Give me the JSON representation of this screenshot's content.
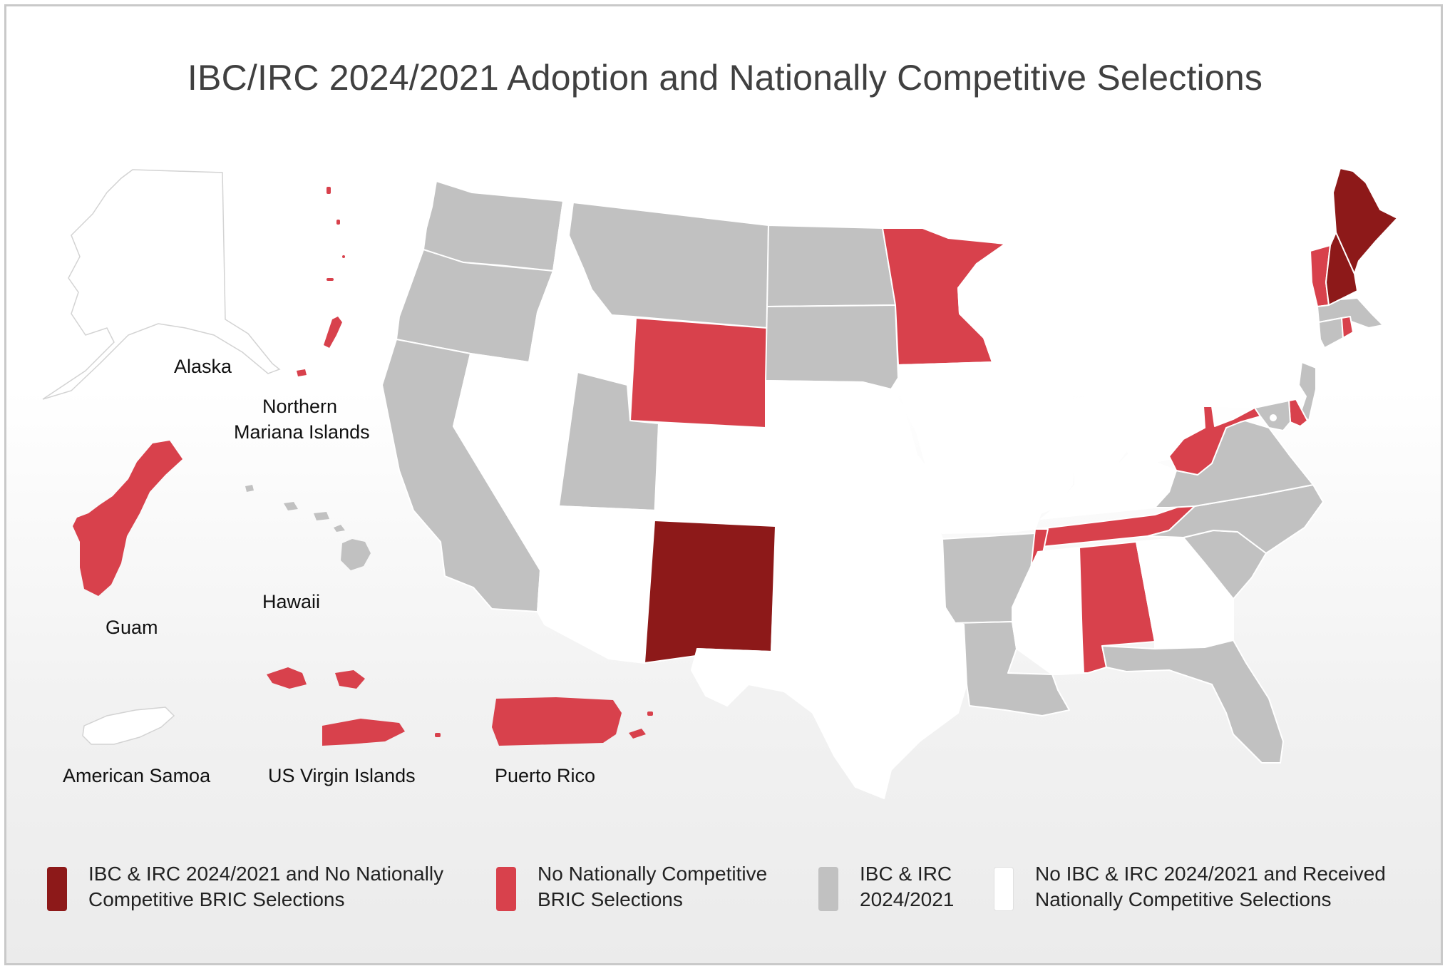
{
  "title": "IBC/IRC 2024/2021 Adoption and Nationally Competitive Selections",
  "colors": {
    "dark_red": "#8d1919",
    "red": "#d8414c",
    "gray": "#c1c1c1",
    "white": "#ffffff"
  },
  "region_labels": {
    "alaska": "Alaska",
    "northern_mariana_1": "Northern",
    "northern_mariana_2": "Mariana Islands",
    "hawaii": "Hawaii",
    "guam": "Guam",
    "american_samoa": "American Samoa",
    "us_virgin_islands": "US Virgin Islands",
    "puerto_rico": "Puerto Rico"
  },
  "legend": [
    {
      "line1": "IBC & IRC 2024/2021 and No Nationally",
      "line2": "Competitive BRIC Selections",
      "color": "#8d1919"
    },
    {
      "line1": "No Nationally Competitive",
      "line2": "BRIC Selections",
      "color": "#d8414c"
    },
    {
      "line1": "IBC & IRC",
      "line2": "2024/2021",
      "color": "#c1c1c1"
    },
    {
      "line1": "No IBC & IRC 2024/2021 and Received",
      "line2": "Nationally Competitive Selections",
      "color": "#ffffff"
    }
  ],
  "state_categories": {
    "dark_red": [
      "New Mexico",
      "Maine",
      "New Hampshire"
    ],
    "red": [
      "Wyoming",
      "Minnesota",
      "West Virginia",
      "Tennessee",
      "Alabama",
      "Vermont",
      "Rhode Island",
      "Delaware",
      "Guam",
      "Northern Mariana Islands",
      "US Virgin Islands",
      "Puerto Rico"
    ],
    "gray": [
      "Washington",
      "Oregon",
      "California",
      "Montana",
      "North Dakota",
      "South Dakota",
      "Utah",
      "Arkansas",
      "Louisiana",
      "Florida",
      "Georgia",
      "South Carolina",
      "North Carolina",
      "Virginia",
      "Maryland",
      "New Jersey",
      "Connecticut",
      "Massachusetts",
      "Hawaii"
    ],
    "white": [
      "Idaho",
      "Nevada",
      "Arizona",
      "Colorado",
      "Nebraska",
      "Kansas",
      "Oklahoma",
      "Texas",
      "Iowa",
      "Missouri",
      "Wisconsin",
      "Illinois",
      "Michigan",
      "Indiana",
      "Ohio",
      "Kentucky",
      "Mississippi",
      "Pennsylvania",
      "New York",
      "Alaska",
      "American Samoa"
    ]
  }
}
